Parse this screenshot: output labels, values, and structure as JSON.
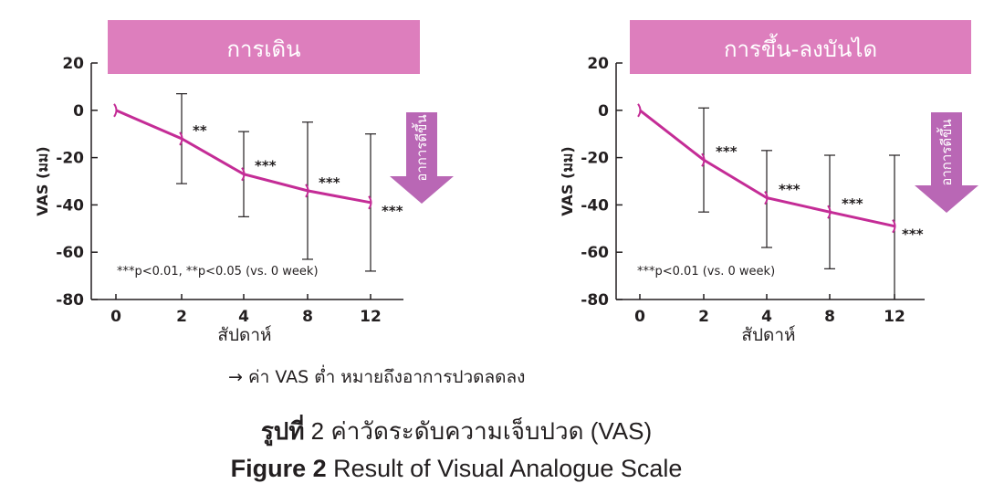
{
  "chart_data": [
    {
      "type": "line",
      "title": "การเดิน",
      "xlabel": "สัปดาห์",
      "ylabel": "VAS (มม)",
      "x": [
        "0",
        "2",
        "4",
        "8",
        "12"
      ],
      "y": [
        0,
        -12,
        -27,
        -34,
        -39
      ],
      "error_upper": [
        0,
        7,
        -9,
        -5,
        -10
      ],
      "error_lower": [
        0,
        -31,
        -45,
        -63,
        -68
      ],
      "significance": [
        "",
        "**",
        "***",
        "***",
        "***"
      ],
      "yticks": [
        20,
        0,
        -20,
        -40,
        -60,
        -80
      ],
      "ylim": [
        -80,
        20
      ],
      "note": "***p<0.01, **p<0.05 (vs. 0 week)",
      "arrow_label": "อาการดีขึ้น",
      "grid": false,
      "line_color": "#c42c96",
      "banner_color": "#dd7ebd"
    },
    {
      "type": "line",
      "title": "การขึ้น-ลงบันได",
      "xlabel": "สัปดาห์",
      "ylabel": "VAS (มม)",
      "x": [
        "0",
        "2",
        "4",
        "8",
        "12"
      ],
      "y": [
        0,
        -21,
        -37,
        -43,
        -49
      ],
      "error_upper": [
        0,
        1,
        -17,
        -19,
        -19
      ],
      "error_lower": [
        0,
        -43,
        -58,
        -67,
        -80
      ],
      "significance": [
        "",
        "***",
        "***",
        "***",
        "***"
      ],
      "yticks": [
        20,
        0,
        -20,
        -40,
        -60,
        -80
      ],
      "ylim": [
        -80,
        20
      ],
      "note": "***p<0.01 (vs. 0 week)",
      "arrow_label": "อาการดีขึ้น",
      "grid": false,
      "line_color": "#c42c96",
      "banner_color": "#dd7ebd"
    }
  ],
  "interpretation": "→ ค่า VAS ต่ำ หมายถึงอาการปวดลดลง",
  "caption_th": {
    "label": "รูปที่",
    "text": " 2 ค่าวัดระดับความเจ็บปวด (VAS)"
  },
  "caption_en": {
    "label": "Figure 2",
    "text": " Result of Visual Analogue Scale"
  }
}
